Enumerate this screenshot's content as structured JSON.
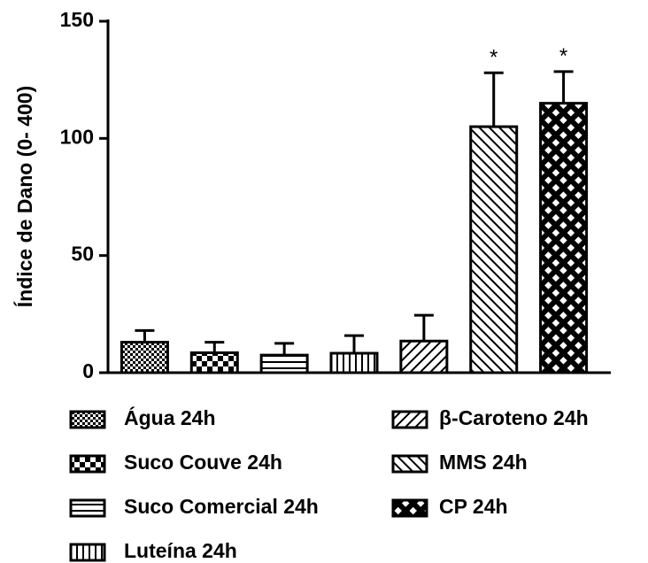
{
  "chart_data": {
    "type": "bar",
    "y_label": "Índice de Dano (0- 400)",
    "categories": [
      "Água 24h",
      "Suco Couve 24h",
      "Suco Comercial 24h",
      "Luteína 24h",
      "β-Caroteno 24h",
      "MMS 24h",
      "CP 24h"
    ],
    "values": [
      13,
      8.5,
      7.5,
      8.3,
      13.5,
      105,
      115
    ],
    "errors": [
      5,
      4.5,
      5,
      7.5,
      11,
      23,
      13.5
    ],
    "markers": [
      null,
      null,
      null,
      null,
      null,
      "*",
      "*"
    ],
    "color": "#000000",
    "ylim": [
      0,
      150
    ],
    "yticks": [
      0,
      50,
      100,
      150
    ]
  }
}
